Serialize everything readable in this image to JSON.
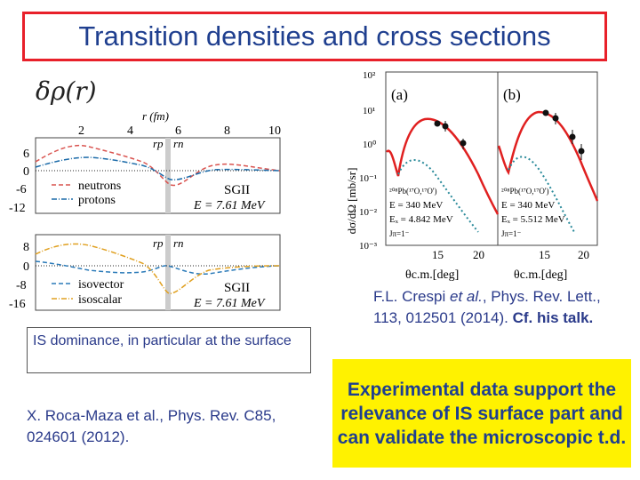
{
  "title": "Transition densities and cross sections",
  "drho_label": "δρ(r)",
  "left_chart_top": {
    "xlabel": "r (fm)",
    "x_ticks": [
      "2",
      "4",
      "6",
      "8",
      "10"
    ],
    "y_ticks": [
      "6",
      "0",
      "-6",
      "-12"
    ],
    "rp_label": "rp",
    "rn_label": "rn",
    "legend": [
      "neutrons",
      "protons"
    ],
    "mode": "SGII",
    "energy": "E = 7.61 MeV",
    "colors": {
      "neutrons": "#d9534f",
      "protons": "#1a6aa8"
    }
  },
  "left_chart_bottom": {
    "y_ticks": [
      "8",
      "0",
      "-8",
      "-16"
    ],
    "rp_label": "rp",
    "rn_label": "rn",
    "legend": [
      "isovector",
      "isoscalar"
    ],
    "mode": "SGII",
    "energy": "E = 7.61 MeV",
    "colors": {
      "isovector": "#2a7ab8",
      "isoscalar": "#e0a020"
    }
  },
  "right_chart": {
    "ylabel": "dσ/dΩ [mb/sr]",
    "y_ticks": [
      "10²",
      "10¹",
      "10⁰",
      "10⁻¹",
      "10⁻²",
      "10⁻³"
    ],
    "panel_a": {
      "label": "(a)",
      "reaction": "²⁰⁸Pb(¹⁷O,¹⁷O')",
      "energy": "E = 340 MeV",
      "ex": "Eₓ = 4.842 MeV",
      "jpi": "Jπ=1⁻",
      "xlabel": "θc.m.[deg]",
      "x_ticks": [
        "15",
        "20"
      ]
    },
    "panel_b": {
      "label": "(b)",
      "reaction": "²⁰⁸Pb(¹⁷O,¹⁷O')",
      "energy": "E = 340 MeV",
      "ex": "Eₓ = 5.512 MeV",
      "jpi": "Jπ=1⁻",
      "xlabel": "θc.m.[deg]",
      "x_ticks": [
        "15",
        "20"
      ]
    }
  },
  "left_note": "IS dominance, in particular at the surface",
  "left_ref": "X. Roca-Maza et al., Phys. Rev. C85, 024601 (2012).",
  "right_ref": {
    "authors": "F.L. Crespi ",
    "etal": "et al.",
    "journal": ", Phys. Rev. Lett., 113, 012501 (2014). ",
    "cf": "Cf. his talk."
  },
  "conclusion": "Experimental data support the relevance of IS surface part and can validate the microscopic t.d."
}
